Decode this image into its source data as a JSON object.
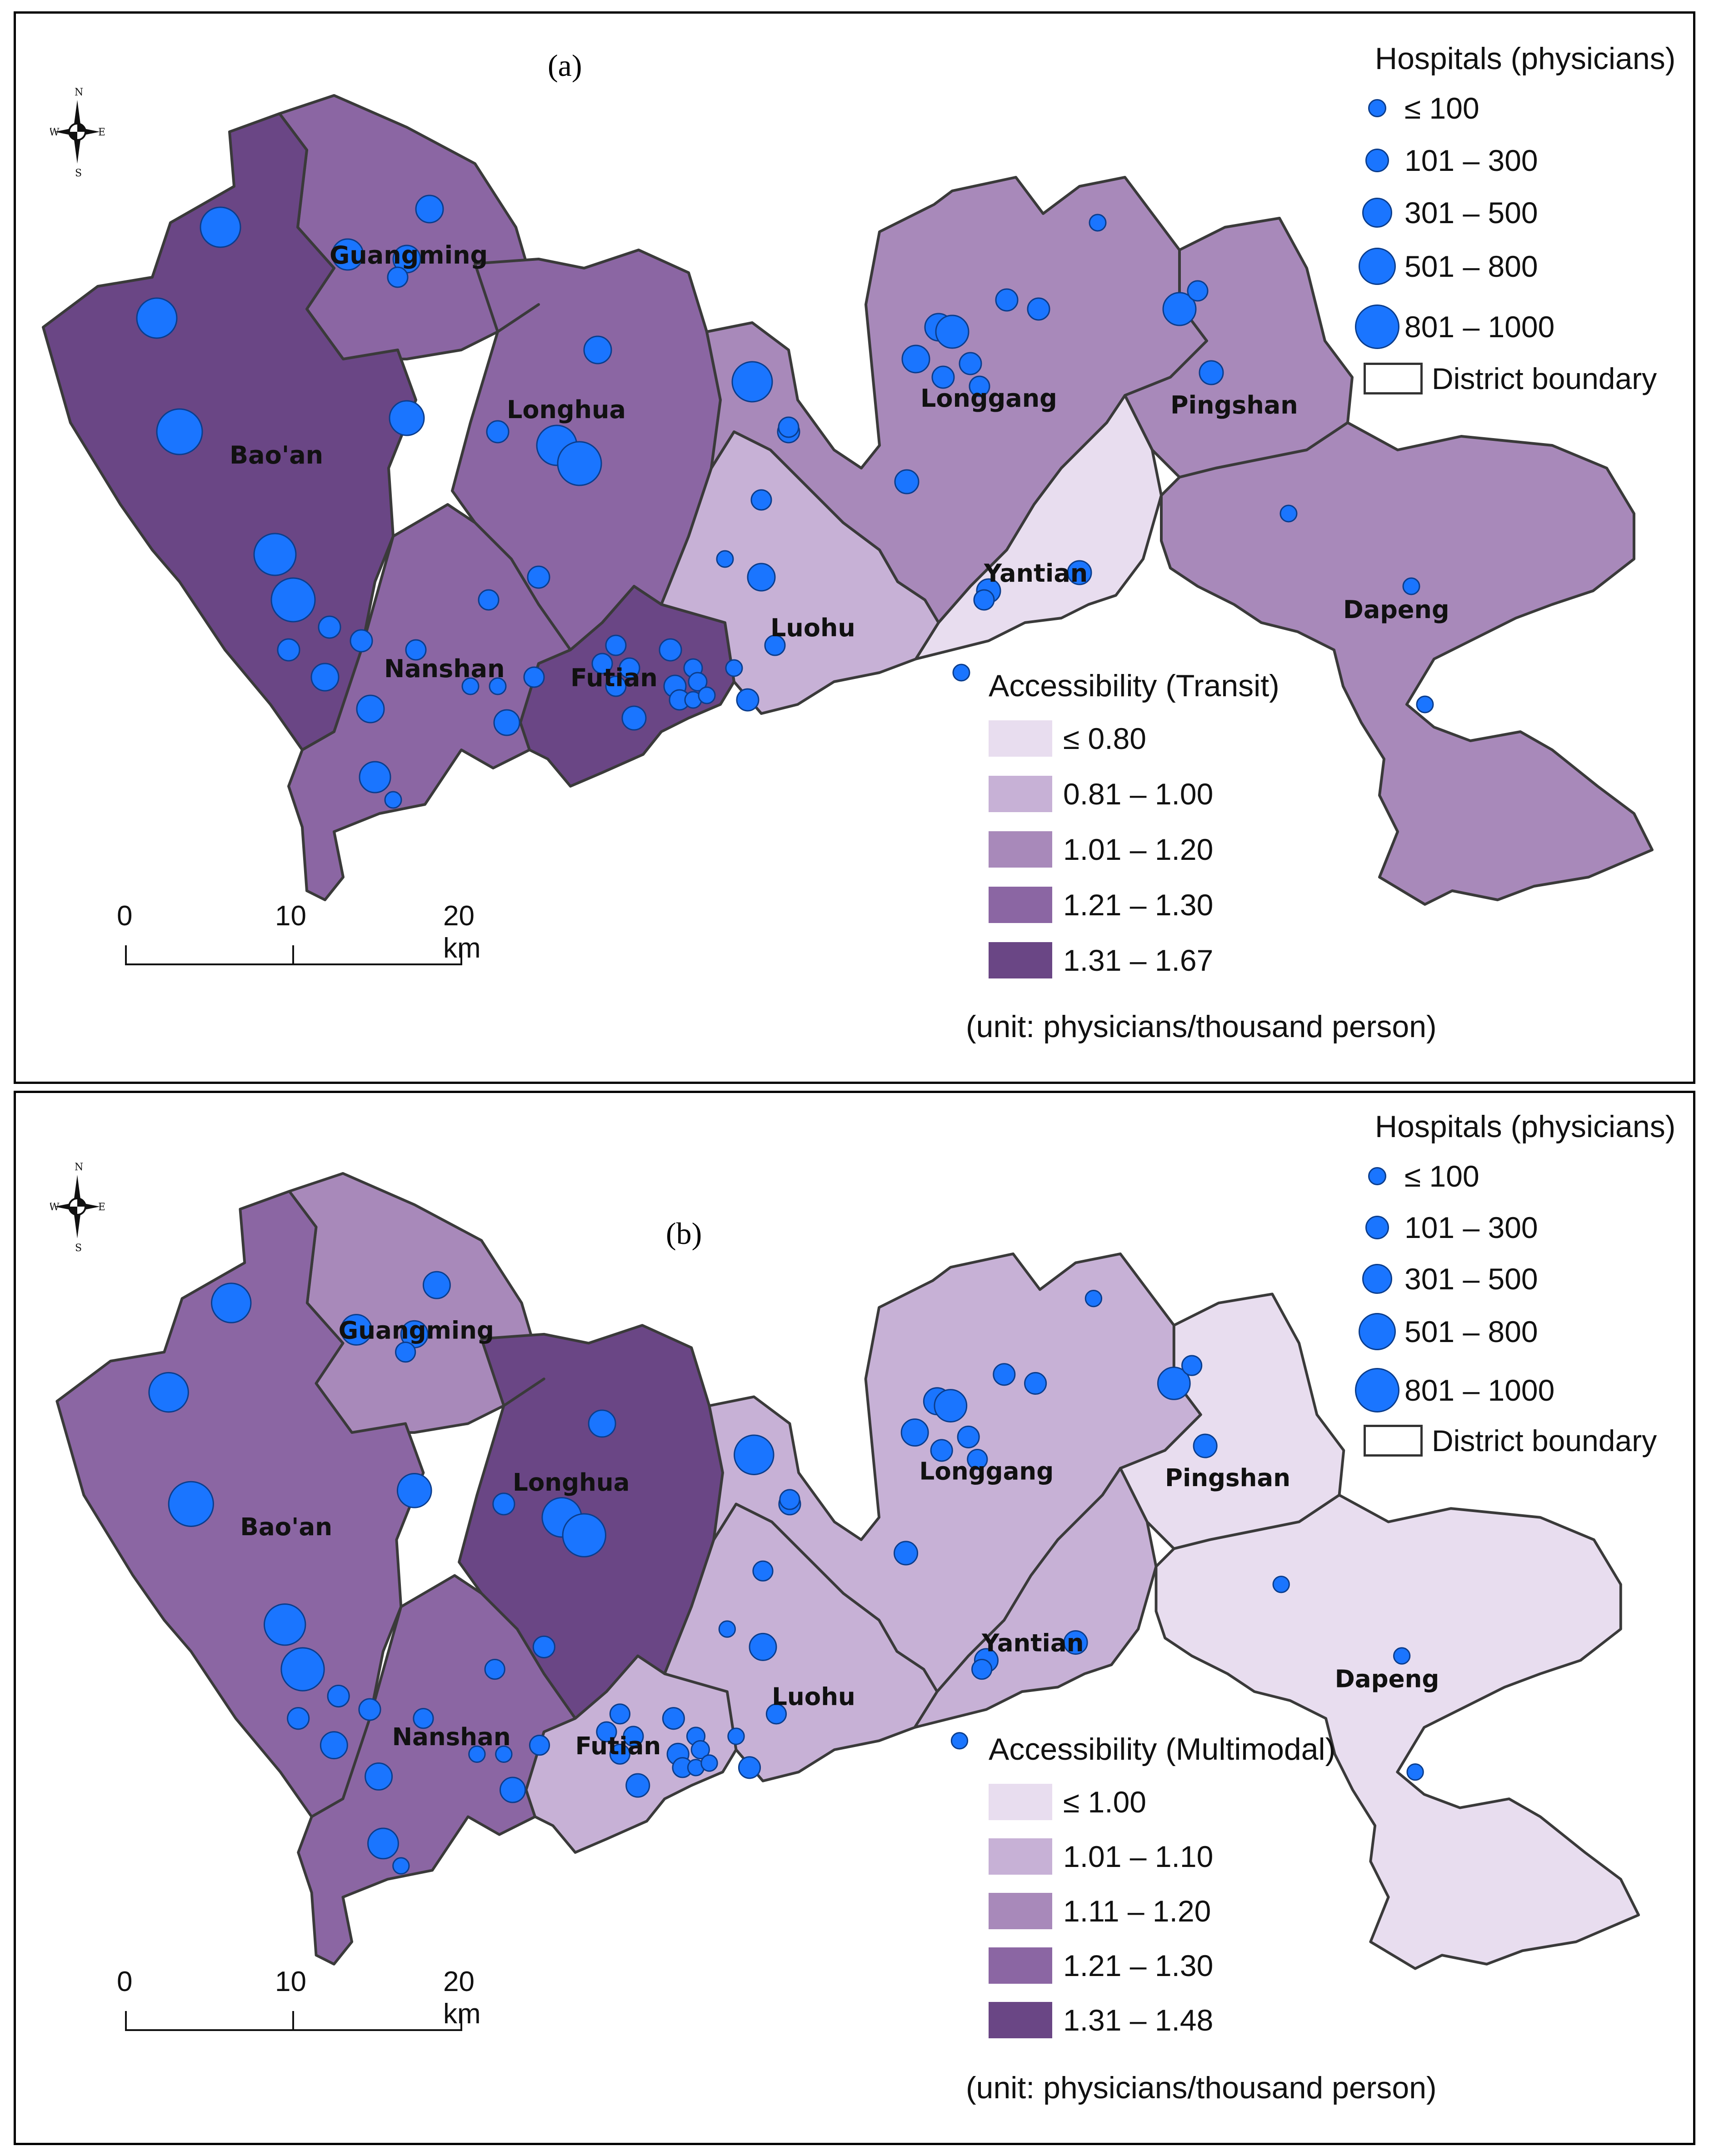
{
  "panels": [
    {
      "id": "a",
      "label": "(a)",
      "legend_title": "Accessibility (Transit)",
      "classes": [
        {
          "label": "≤ 0.80",
          "color": "#e8ddef"
        },
        {
          "label": "0.81 – 1.00",
          "color": "#c7b1d6"
        },
        {
          "label": "1.01 – 1.20",
          "color": "#a889ba"
        },
        {
          "label": "1.21 – 1.30",
          "color": "#8b66a3"
        },
        {
          "label": "1.31 – 1.67",
          "color": "#6a4685"
        }
      ]
    },
    {
      "id": "b",
      "label": "(b)",
      "legend_title": "Accessibility (Multimodal)",
      "classes": [
        {
          "label": "≤ 1.00",
          "color": "#e8ddef"
        },
        {
          "label": "1.01 – 1.10",
          "color": "#c7b1d6"
        },
        {
          "label": "1.11 – 1.20",
          "color": "#a889ba"
        },
        {
          "label": "1.21 – 1.30",
          "color": "#8b66a3"
        },
        {
          "label": "1.31 – 1.48",
          "color": "#6a4685"
        }
      ]
    }
  ],
  "hospital_legend": {
    "title": "Hospitals (physicians)",
    "classes": [
      "≤ 100",
      "101 – 300",
      "301 – 500",
      "501 – 800",
      "801 – 1000"
    ],
    "color": "#1a75ff"
  },
  "boundary_label": "District boundary",
  "unit": "(unit: physicians/thousand person)",
  "scale": {
    "labels": [
      "0",
      "10",
      "20 km"
    ]
  },
  "compass": {
    "n": "N",
    "s": "S",
    "e": "E",
    "w": "W"
  },
  "districts": [
    "Guangming",
    "Longhua",
    "Bao'an",
    "Nanshan",
    "Futian",
    "Luohu",
    "Longgang",
    "Pingshan",
    "Yantian",
    "Dapeng"
  ],
  "district_classes": {
    "a": {
      "Guangming": 3,
      "Longhua": 3,
      "Bao'an": 4,
      "Nanshan": 3,
      "Futian": 4,
      "Luohu": 1,
      "Longgang": 2,
      "Pingshan": 2,
      "Yantian": 0,
      "Dapeng": 2
    },
    "b": {
      "Guangming": 2,
      "Longhua": 4,
      "Bao'an": 3,
      "Nanshan": 3,
      "Futian": 1,
      "Luohu": 1,
      "Longgang": 1,
      "Pingshan": 0,
      "Yantian": 1,
      "Dapeng": 0
    }
  }
}
